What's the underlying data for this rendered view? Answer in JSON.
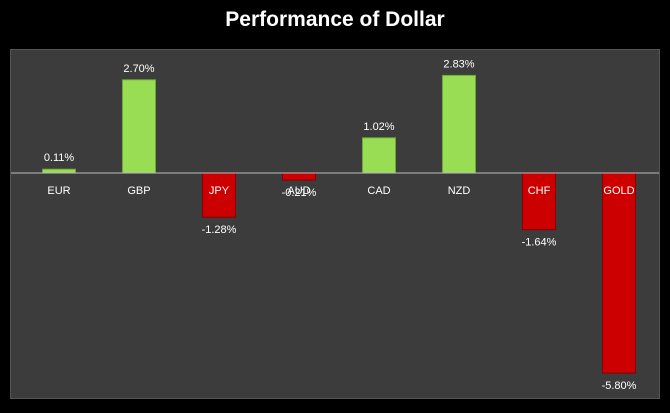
{
  "chart_data": {
    "type": "bar",
    "title": "Performance of Dollar",
    "categories": [
      "EUR",
      "GBP",
      "JPY",
      "AUD",
      "CAD",
      "NZD",
      "CHF",
      "GOLD"
    ],
    "values": [
      0.11,
      2.7,
      -1.28,
      -0.21,
      1.02,
      2.83,
      -1.64,
      -5.8
    ],
    "value_labels": [
      "0.11%",
      "2.70%",
      "-1.28%",
      "-0.21%",
      "1.02%",
      "2.83%",
      "-1.64%",
      "-5.80%"
    ],
    "xlabel": "",
    "ylabel": "",
    "ylim": [
      -5.9,
      4.2
    ],
    "grid": false,
    "legend": "none",
    "colors": {
      "positive": "#99dd55",
      "positive_dark": "#6ea832",
      "negative": "#cc0000",
      "negative_dark": "#8a0000",
      "plot_background": "#3c3c3c",
      "page_background": "#000000",
      "axis_line": "#bbbbbb",
      "text": "#ffffff"
    }
  }
}
